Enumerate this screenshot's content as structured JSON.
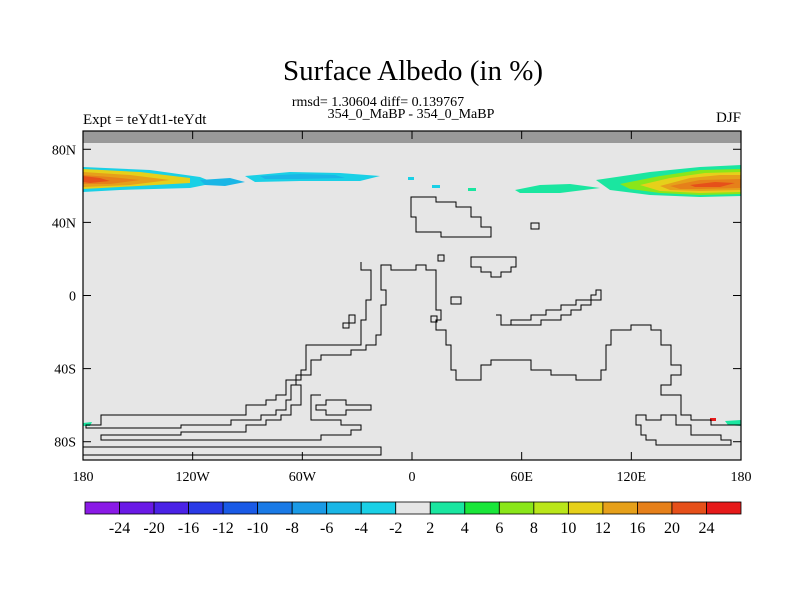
{
  "chart_data": {
    "type": "heatmap",
    "title": "Surface Albedo (in %)",
    "stats": "rmsd= 1.30604 diff= 0.139767",
    "subtitle": "354_0_MaBP - 354_0_MaBP",
    "left_label": "Expt = teYdt1-teYdt",
    "right_label": "DJF",
    "x_ticks": [
      "180",
      "120W",
      "60W",
      "0",
      "60E",
      "120E",
      "180"
    ],
    "y_ticks": [
      "80N",
      "40N",
      "0",
      "40S",
      "80S"
    ],
    "xlim": [
      -180,
      180
    ],
    "ylim": [
      -90,
      90
    ],
    "colorbar": {
      "levels": [
        "-24",
        "-20",
        "-16",
        "-12",
        "-10",
        "-8",
        "-6",
        "-4",
        "-2",
        "2",
        "4",
        "6",
        "8",
        "10",
        "12",
        "16",
        "20",
        "24"
      ],
      "colors": [
        "#8a1ae6",
        "#6a1ae6",
        "#4a22e6",
        "#2a3ae6",
        "#1a5ae6",
        "#1a7ae6",
        "#1a9ae6",
        "#1ab6e6",
        "#1ad0e6",
        "#e6e6e6",
        "#1ae6a0",
        "#1ae63a",
        "#8ae61a",
        "#bae61a",
        "#e6d01a",
        "#e6a01a",
        "#e6801a",
        "#e6501a",
        "#e61a1a"
      ]
    },
    "colors": {
      "missing": "#999999",
      "background": "#e6e6e6"
    }
  }
}
